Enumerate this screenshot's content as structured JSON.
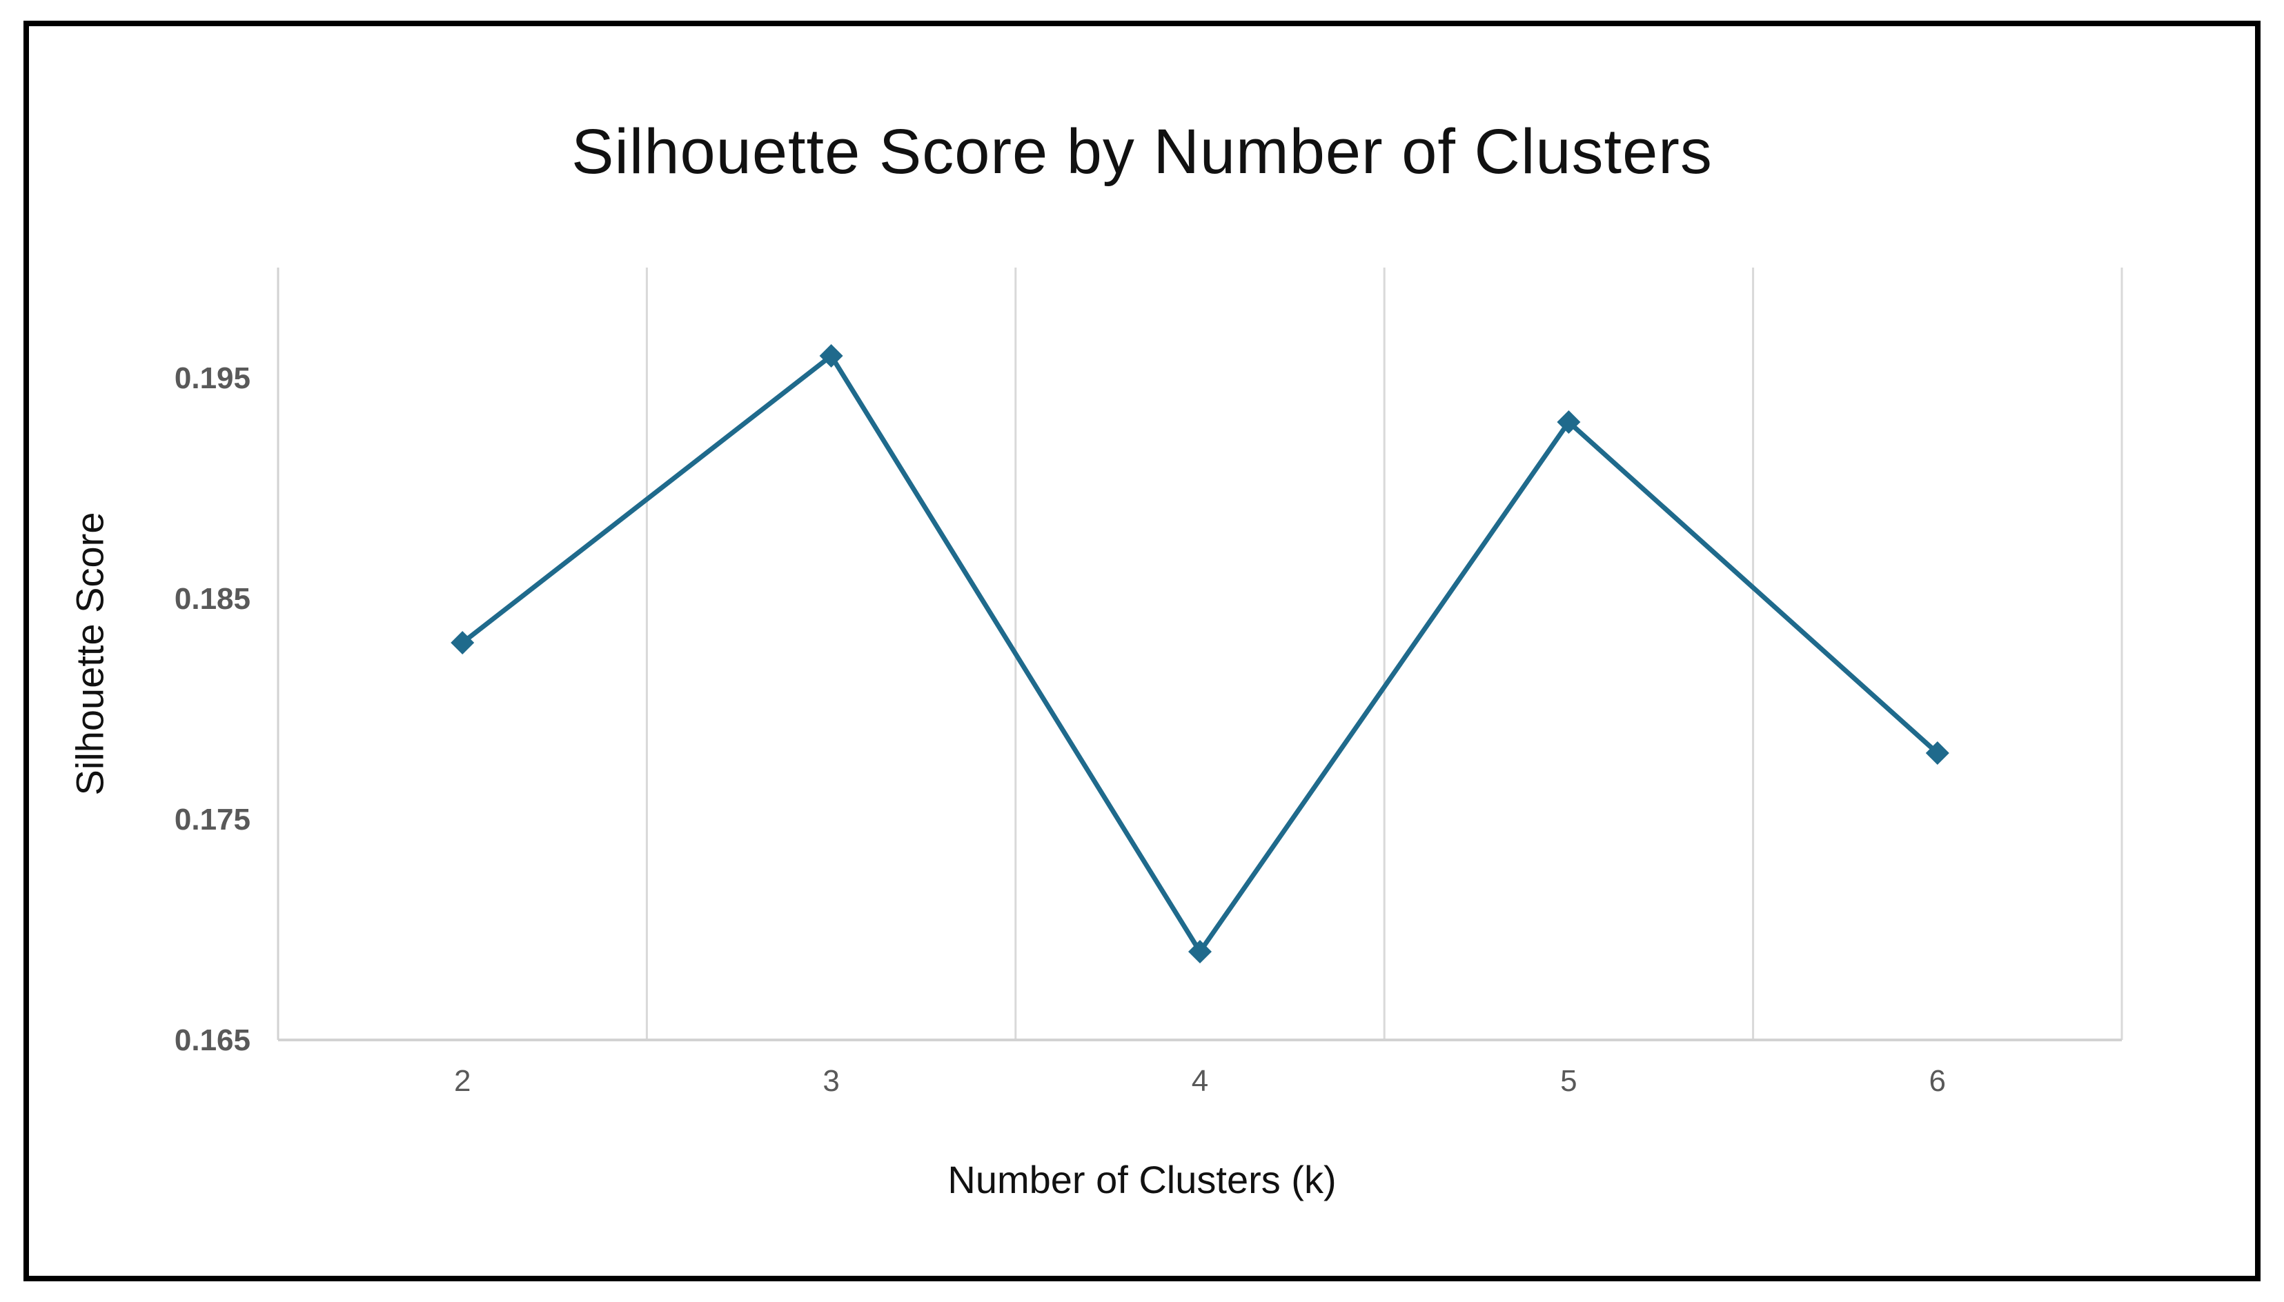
{
  "chart_data": {
    "type": "line",
    "title": "Silhouette Score by Number of Clusters",
    "xlabel": "Number of Clusters (k)",
    "ylabel": "Silhouette Score",
    "categories": [
      "2",
      "3",
      "4",
      "5",
      "6"
    ],
    "series": [
      {
        "name": "Silhouette Score",
        "values": [
          0.183,
          0.196,
          0.169,
          0.193,
          0.178
        ]
      }
    ],
    "ylim": [
      0.165,
      0.2
    ],
    "yticks": [
      0.165,
      0.175,
      0.185,
      0.195
    ],
    "ytick_labels": [
      "0.165",
      "0.175",
      "0.185",
      "0.195"
    ],
    "xtick_labels": [
      "2",
      "3",
      "4",
      "5",
      "6"
    ],
    "grid": "vertical-only",
    "legend": "none",
    "marker": "diamond",
    "colors": {
      "line": "#1f6a8c",
      "marker": "#1f6a8c",
      "gridline": "#d9d9d9",
      "axis_line": "#d2d2d2",
      "tick_label": "#595959",
      "title": "#111111",
      "frame_border": "#000000",
      "background": "#ffffff"
    }
  }
}
